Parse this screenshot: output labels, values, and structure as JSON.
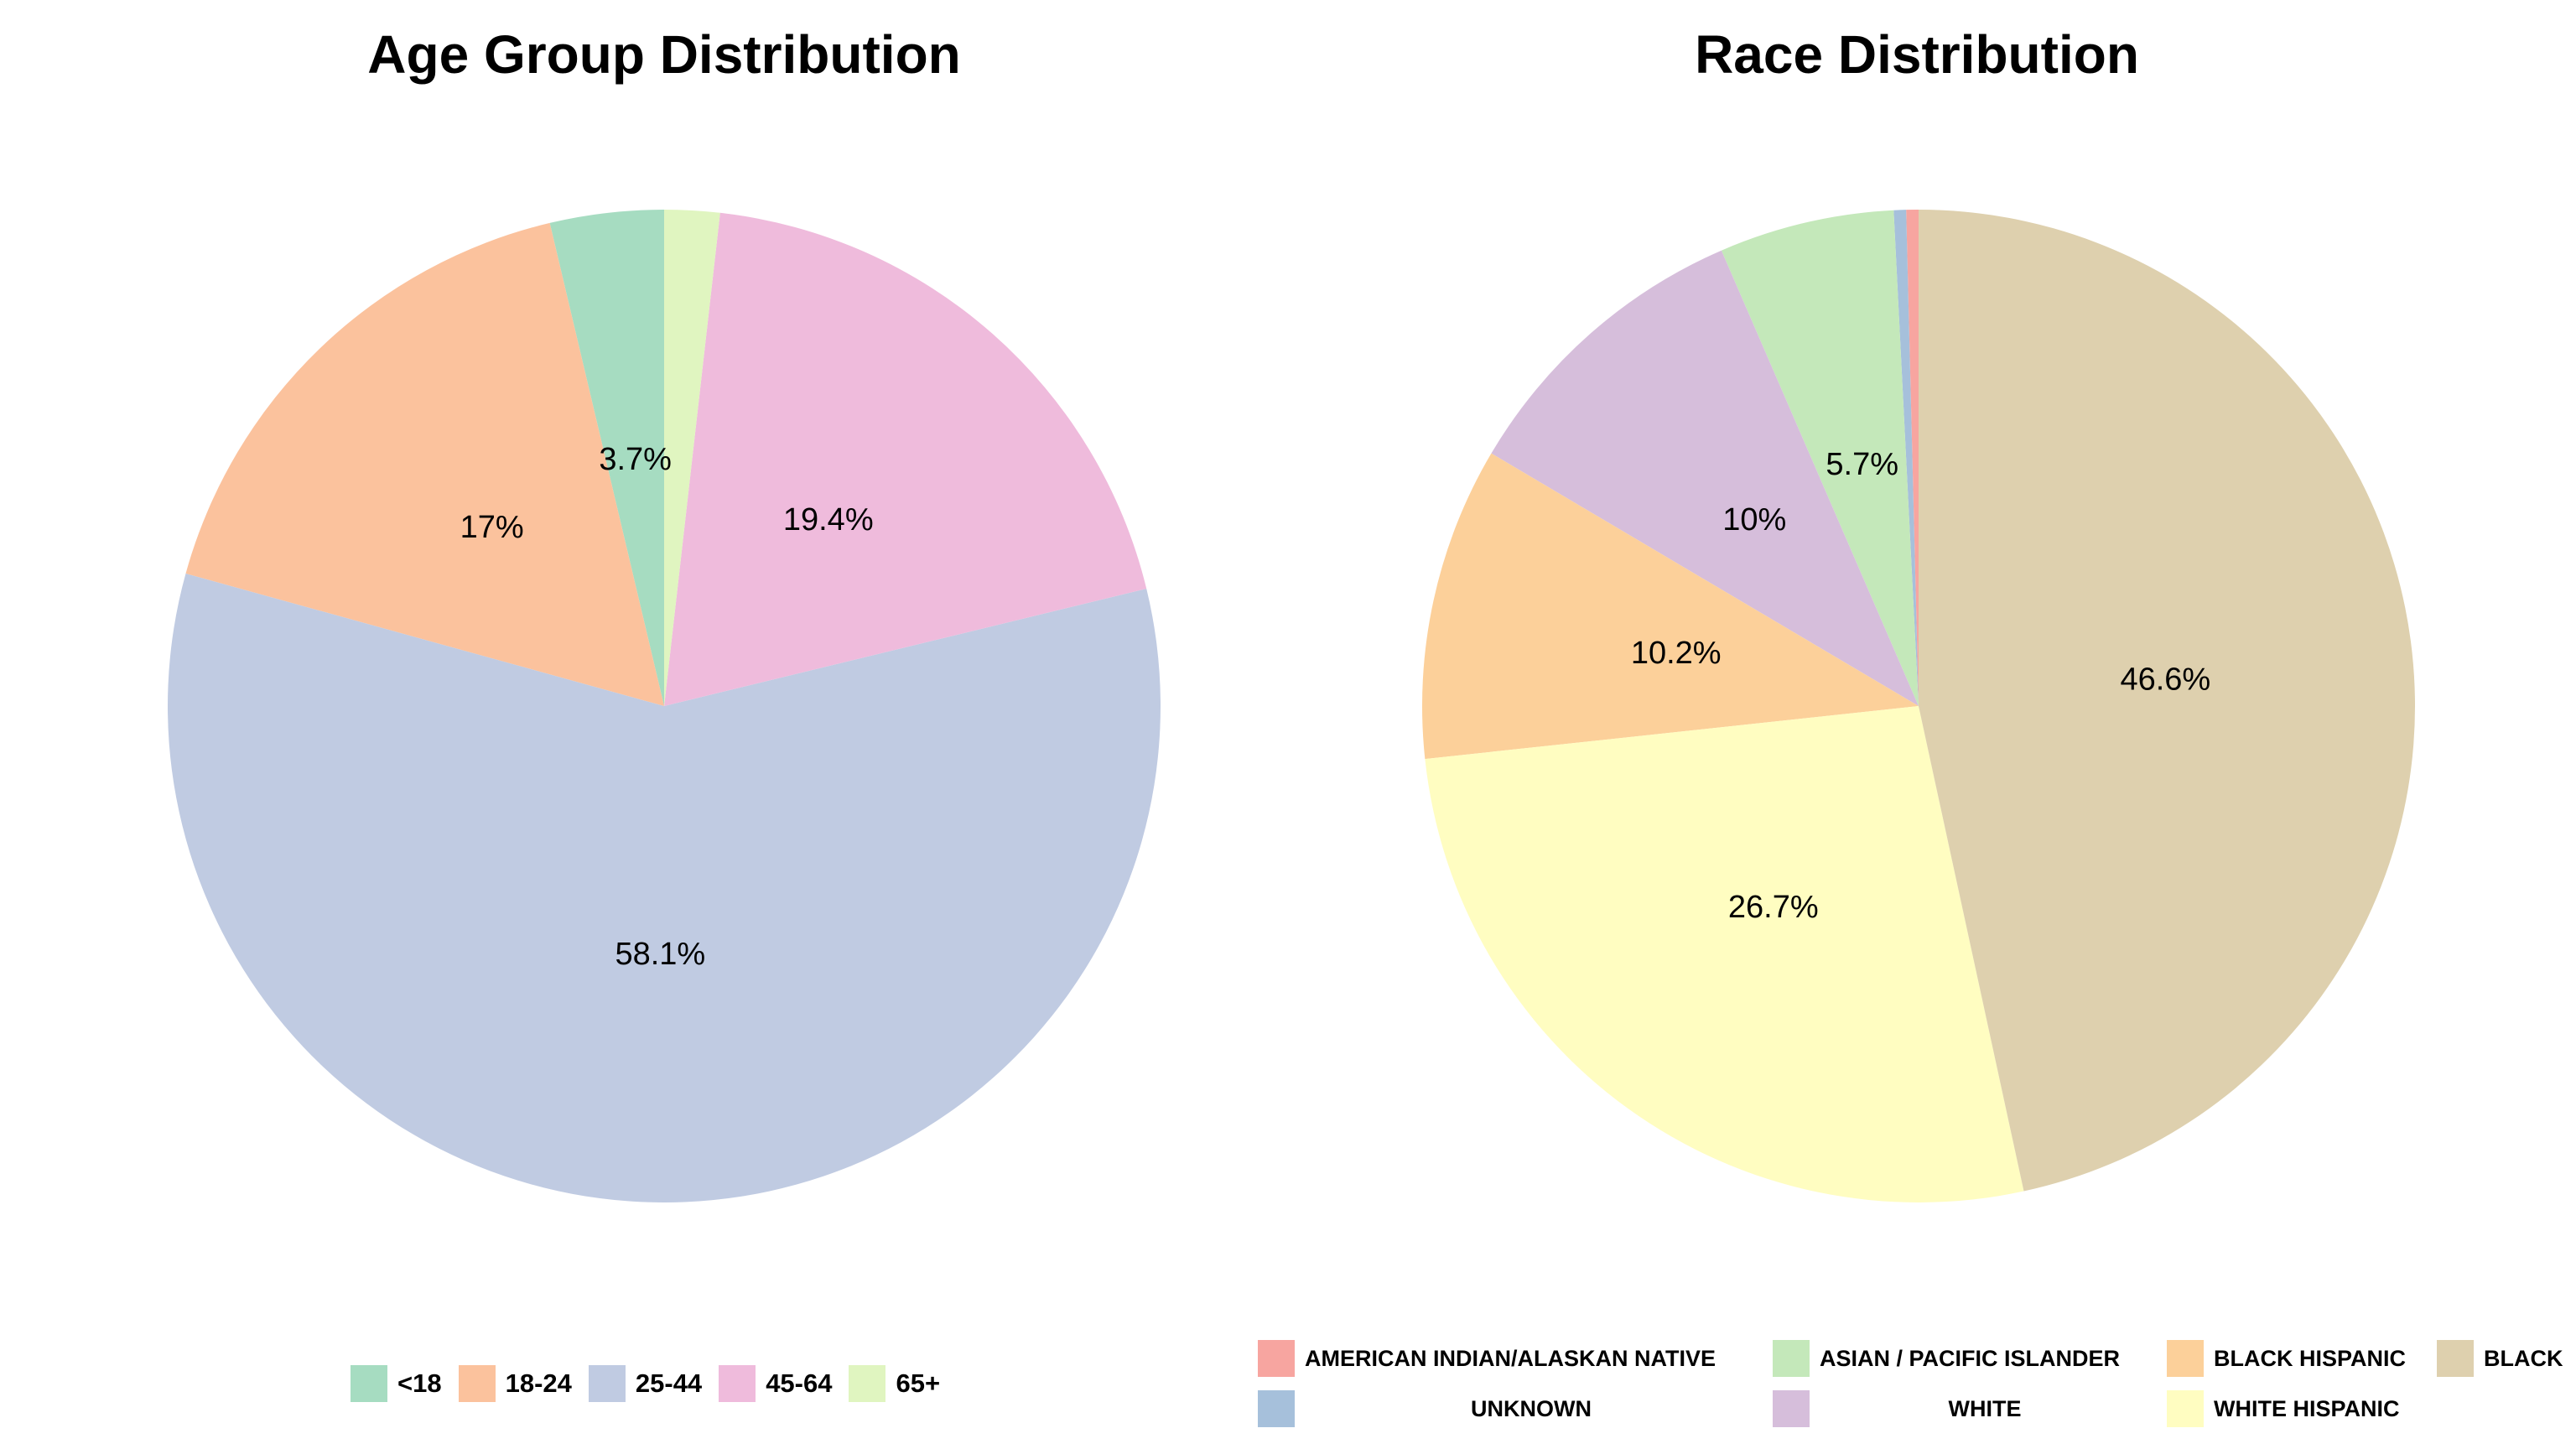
{
  "chart_data": [
    {
      "type": "pie",
      "title": "Age Group Distribution",
      "categories": [
        "<18",
        "18-24",
        "25-44",
        "45-64",
        "65+"
      ],
      "values": [
        3.7,
        17.0,
        58.1,
        19.4,
        1.8
      ],
      "labels": [
        "3.7%",
        "17%",
        "58.1%",
        "19.4%",
        ""
      ],
      "colors": [
        "#a6dcc1",
        "#fbc29d",
        "#c0cbe2",
        "#efbbdc",
        "#e0f5c0"
      ],
      "legend": "bottom",
      "start": "12 o'clock",
      "direction": "counterclockwise"
    },
    {
      "type": "pie",
      "title": "Race Distribution",
      "categories": [
        "AMERICAN INDIAN/ALASKAN NATIVE",
        "UNKNOWN",
        "ASIAN / PACIFIC ISLANDER",
        "WHITE",
        "BLACK HISPANIC",
        "WHITE HISPANIC",
        "BLACK"
      ],
      "values": [
        0.4,
        0.4,
        5.7,
        10.0,
        10.2,
        26.7,
        46.6
      ],
      "labels": [
        "",
        "",
        "5.7%",
        "10%",
        "10.2%",
        "26.7%",
        "46.6%"
      ],
      "colors": [
        "#f7a5a0",
        "#a6c0db",
        "#c4e8ba",
        "#d6bedb",
        "#fcd09a",
        "#fffdc1",
        "#ded0ae"
      ],
      "legend": "bottom",
      "start": "12 o'clock",
      "direction": "counterclockwise"
    }
  ]
}
